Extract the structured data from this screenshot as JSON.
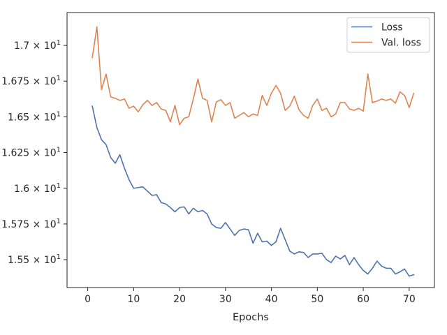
{
  "chart_data": {
    "type": "line",
    "title": "",
    "xlabel": "Epochs",
    "ylabel": "",
    "xlim": [
      -4.5,
      75.5
    ],
    "ylim": [
      15.305,
      17.23
    ],
    "x_ticks": [
      0,
      10,
      20,
      30,
      40,
      50,
      60,
      70
    ],
    "x_tick_labels": [
      "0",
      "10",
      "20",
      "30",
      "40",
      "50",
      "60",
      "70"
    ],
    "y_ticks": [
      15.5,
      15.75,
      16.0,
      16.25,
      16.5,
      16.75,
      17.0
    ],
    "y_tick_mantissas": [
      "1.55",
      "1.575",
      "1.6",
      "1.625",
      "1.65",
      "1.675",
      "1.7"
    ],
    "y_tick_base": "× 10",
    "y_tick_exponent": "1",
    "grid": false,
    "legend_position": "top-right",
    "x": [
      1,
      2,
      3,
      4,
      5,
      6,
      7,
      8,
      9,
      10,
      11,
      12,
      13,
      14,
      15,
      16,
      17,
      18,
      19,
      20,
      21,
      22,
      23,
      24,
      25,
      26,
      27,
      28,
      29,
      30,
      31,
      32,
      33,
      34,
      35,
      36,
      37,
      38,
      39,
      40,
      41,
      42,
      43,
      44,
      45,
      46,
      47,
      48,
      49,
      50,
      51,
      52,
      53,
      54,
      55,
      56,
      57,
      58,
      59,
      60,
      61,
      62,
      63,
      64,
      65,
      66,
      67,
      68,
      69,
      70,
      71
    ],
    "series": [
      {
        "name": "Loss",
        "color": "#4c72b0",
        "values": [
          16.575,
          16.425,
          16.34,
          16.305,
          16.215,
          16.175,
          16.235,
          16.14,
          16.06,
          16.0,
          16.005,
          16.01,
          15.98,
          15.95,
          15.955,
          15.9,
          15.89,
          15.865,
          15.835,
          15.865,
          15.87,
          15.82,
          15.86,
          15.835,
          15.845,
          15.82,
          15.75,
          15.725,
          15.72,
          15.76,
          15.715,
          15.67,
          15.705,
          15.715,
          15.71,
          15.615,
          15.685,
          15.625,
          15.63,
          15.6,
          15.625,
          15.72,
          15.64,
          15.56,
          15.54,
          15.555,
          15.55,
          15.515,
          15.54,
          15.54,
          15.545,
          15.5,
          15.48,
          15.525,
          15.505,
          15.53,
          15.465,
          15.515,
          15.465,
          15.425,
          15.4,
          15.44,
          15.49,
          15.455,
          15.44,
          15.44,
          15.4,
          15.415,
          15.435,
          15.385,
          15.395
        ]
      },
      {
        "name": "Val. loss",
        "color": "#dd8452",
        "values": [
          16.915,
          17.13,
          16.69,
          16.8,
          16.64,
          16.63,
          16.615,
          16.625,
          16.56,
          16.575,
          16.535,
          16.585,
          16.615,
          16.58,
          16.6,
          16.555,
          16.545,
          16.465,
          16.58,
          16.445,
          16.49,
          16.5,
          16.625,
          16.765,
          16.63,
          16.615,
          16.465,
          16.605,
          16.62,
          16.58,
          16.6,
          16.49,
          16.51,
          16.53,
          16.5,
          16.52,
          16.51,
          16.65,
          16.58,
          16.665,
          16.72,
          16.665,
          16.545,
          16.575,
          16.645,
          16.55,
          16.51,
          16.49,
          16.58,
          16.625,
          16.545,
          16.56,
          16.5,
          16.52,
          16.6,
          16.6,
          16.555,
          16.545,
          16.56,
          16.54,
          16.8,
          16.6,
          16.61,
          16.625,
          16.615,
          16.625,
          16.595,
          16.675,
          16.65,
          16.565,
          16.665
        ]
      }
    ]
  }
}
